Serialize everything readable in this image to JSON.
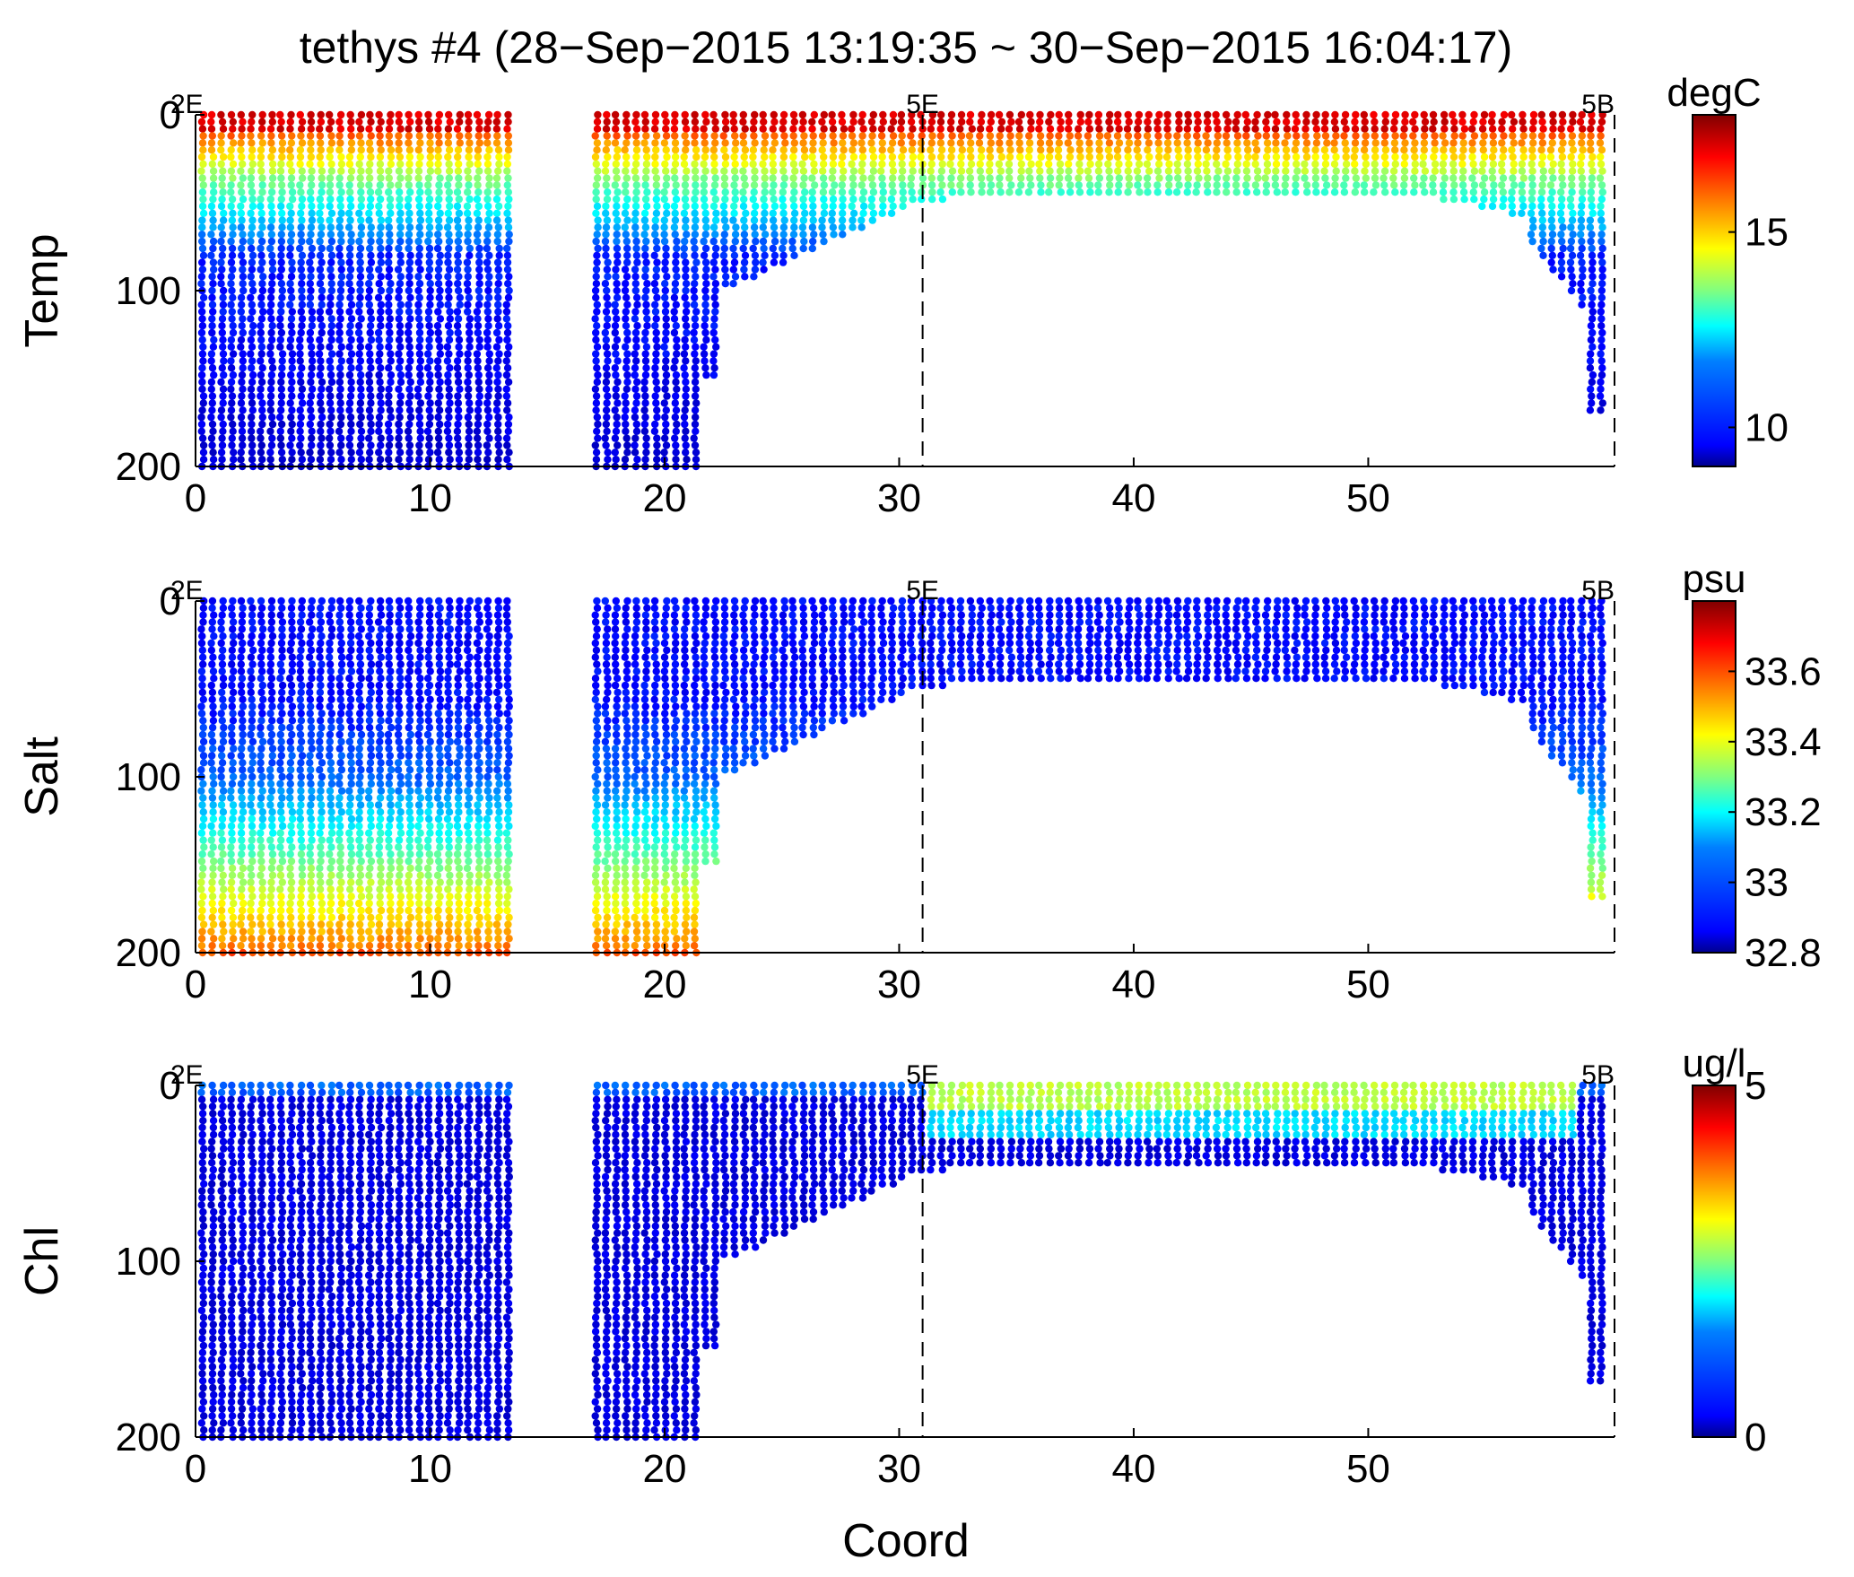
{
  "figure": {
    "title": "tethys #4 (28−Sep−2015 13:19:35 ~ 30−Sep−2015 16:04:17)",
    "xlabel": "Coord"
  },
  "colormap": [
    "#00008f",
    "#0000ff",
    "#0080ff",
    "#00ffff",
    "#80ff80",
    "#ffff00",
    "#ff8000",
    "#ff0000",
    "#800000"
  ],
  "chart_data": [
    {
      "type": "scatter",
      "name": "temp-panel",
      "ylabel": "Temp",
      "xlabel": "",
      "xlim": [
        0,
        60.5
      ],
      "ylim": [
        200,
        0
      ],
      "y_reversed": true,
      "xticks": [
        0,
        10,
        20,
        30,
        40,
        50
      ],
      "yticks": [
        0,
        100,
        200
      ],
      "stations": [
        {
          "label": "2E",
          "x": 0
        },
        {
          "label": "5E",
          "x": 31
        },
        {
          "label": "5B",
          "x": 60.5
        }
      ],
      "station_lines_x": [
        31,
        60.5
      ],
      "colorbar": {
        "label": "degC",
        "min": 9,
        "max": 18,
        "ticks": [
          10,
          15
        ]
      },
      "approx_profile": "surface ~17 degC, mixed layer ~14 degC to ~35 m, ~10 degC at depth"
    },
    {
      "type": "scatter",
      "name": "salt-panel",
      "ylabel": "Salt",
      "xlabel": "",
      "xlim": [
        0,
        60.5
      ],
      "ylim": [
        200,
        0
      ],
      "y_reversed": true,
      "xticks": [
        0,
        10,
        20,
        30,
        40,
        50
      ],
      "yticks": [
        0,
        100,
        200
      ],
      "stations": [
        {
          "label": "2E",
          "x": 0
        },
        {
          "label": "5E",
          "x": 31
        },
        {
          "label": "5B",
          "x": 60.5
        }
      ],
      "station_lines_x": [
        31,
        60.5
      ],
      "colorbar": {
        "label": "psu",
        "min": 32.8,
        "max": 33.8,
        "ticks": [
          33.6,
          33.4,
          33.2,
          33,
          32.8
        ],
        "tick_labels": [
          "33.6",
          "33.4",
          "33.2",
          "33",
          "32.8"
        ]
      },
      "approx_profile": "~32.9 psu above 50 m, increasing to ~33.6 psu near 200 m"
    },
    {
      "type": "scatter",
      "name": "chl-panel",
      "ylabel": "Chl",
      "xlabel": "Coord",
      "xlim": [
        0,
        60.5
      ],
      "ylim": [
        200,
        0
      ],
      "y_reversed": true,
      "xticks": [
        0,
        10,
        20,
        30,
        40,
        50
      ],
      "yticks": [
        0,
        100,
        200
      ],
      "stations": [
        {
          "label": "2E",
          "x": 0
        },
        {
          "label": "5E",
          "x": 31
        },
        {
          "label": "5B",
          "x": 60.5
        }
      ],
      "station_lines_x": [
        31,
        60.5
      ],
      "colorbar": {
        "label": "ug/l",
        "min": 0,
        "max": 5,
        "ticks": [
          5,
          0
        ]
      },
      "approx_profile": "~3 ug/l in top 15 m between Coord 31 and 59, ~0.5 ug/l elsewhere"
    }
  ]
}
